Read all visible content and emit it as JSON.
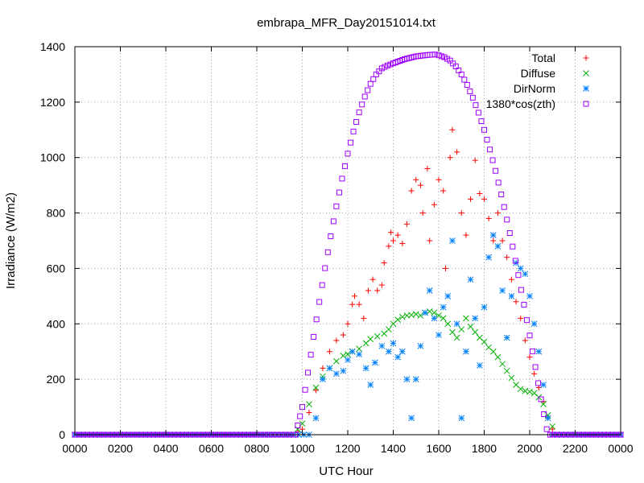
{
  "chart_data": {
    "type": "scatter",
    "title": "embrapa_MFR_Day20151014.txt",
    "xlabel": "UTC Hour",
    "ylabel": "Irradiance (W/m2)",
    "xlim": [
      0,
      24
    ],
    "ylim": [
      0,
      1400
    ],
    "x_ticks": [
      {
        "value": 0,
        "label": "0000"
      },
      {
        "value": 2,
        "label": "0200"
      },
      {
        "value": 4,
        "label": "0400"
      },
      {
        "value": 6,
        "label": "0600"
      },
      {
        "value": 8,
        "label": "0800"
      },
      {
        "value": 10,
        "label": "1000"
      },
      {
        "value": 12,
        "label": "1200"
      },
      {
        "value": 14,
        "label": "1400"
      },
      {
        "value": 16,
        "label": "1600"
      },
      {
        "value": 18,
        "label": "1800"
      },
      {
        "value": 20,
        "label": "2000"
      },
      {
        "value": 22,
        "label": "2200"
      },
      {
        "value": 24,
        "label": "0000"
      }
    ],
    "y_ticks": [
      0,
      200,
      400,
      600,
      800,
      1000,
      1200,
      1400
    ],
    "grid": true,
    "legend_position": "top-right",
    "series": [
      {
        "name": "Total",
        "color": "#ff0000",
        "marker": "plus",
        "points": [
          [
            0,
            0
          ],
          [
            2,
            0
          ],
          [
            4,
            0
          ],
          [
            6,
            0
          ],
          [
            8,
            0
          ],
          [
            9.6,
            0
          ],
          [
            10.0,
            20
          ],
          [
            10.3,
            80
          ],
          [
            10.6,
            160
          ],
          [
            10.9,
            240
          ],
          [
            11.2,
            300
          ],
          [
            11.5,
            340
          ],
          [
            11.8,
            360
          ],
          [
            12.0,
            400
          ],
          [
            12.2,
            470
          ],
          [
            12.3,
            500
          ],
          [
            12.5,
            470
          ],
          [
            12.7,
            420
          ],
          [
            12.9,
            520
          ],
          [
            13.1,
            560
          ],
          [
            13.3,
            520
          ],
          [
            13.5,
            540
          ],
          [
            13.6,
            620
          ],
          [
            13.8,
            680
          ],
          [
            13.9,
            730
          ],
          [
            14.0,
            700
          ],
          [
            14.2,
            720
          ],
          [
            14.4,
            690
          ],
          [
            14.6,
            760
          ],
          [
            14.8,
            880
          ],
          [
            15.0,
            920
          ],
          [
            15.2,
            900
          ],
          [
            15.3,
            800
          ],
          [
            15.5,
            960
          ],
          [
            15.6,
            700
          ],
          [
            15.8,
            830
          ],
          [
            16.0,
            920
          ],
          [
            16.2,
            880
          ],
          [
            16.3,
            600
          ],
          [
            16.5,
            1000
          ],
          [
            16.6,
            1100
          ],
          [
            16.8,
            1020
          ],
          [
            17.0,
            800
          ],
          [
            17.2,
            720
          ],
          [
            17.4,
            850
          ],
          [
            17.6,
            990
          ],
          [
            17.8,
            870
          ],
          [
            18.0,
            850
          ],
          [
            18.2,
            780
          ],
          [
            18.4,
            700
          ],
          [
            18.6,
            800
          ],
          [
            18.8,
            700
          ],
          [
            19.0,
            640
          ],
          [
            19.2,
            560
          ],
          [
            19.4,
            480
          ],
          [
            19.6,
            420
          ],
          [
            19.8,
            340
          ],
          [
            20.0,
            280
          ],
          [
            20.2,
            220
          ],
          [
            20.4,
            170
          ],
          [
            20.6,
            120
          ],
          [
            20.8,
            60
          ],
          [
            21.0,
            20
          ],
          [
            21.2,
            0
          ],
          [
            22,
            0
          ],
          [
            24,
            0
          ]
        ]
      },
      {
        "name": "Diffuse",
        "color": "#00b000",
        "marker": "x",
        "points": [
          [
            0,
            0
          ],
          [
            2,
            0
          ],
          [
            4,
            0
          ],
          [
            6,
            0
          ],
          [
            8,
            0
          ],
          [
            9.6,
            0
          ],
          [
            10.0,
            40
          ],
          [
            10.3,
            110
          ],
          [
            10.6,
            170
          ],
          [
            10.9,
            210
          ],
          [
            11.2,
            240
          ],
          [
            11.5,
            265
          ],
          [
            11.8,
            285
          ],
          [
            12.0,
            290
          ],
          [
            12.2,
            300
          ],
          [
            12.5,
            310
          ],
          [
            12.8,
            330
          ],
          [
            13.0,
            345
          ],
          [
            13.3,
            355
          ],
          [
            13.6,
            365
          ],
          [
            13.8,
            380
          ],
          [
            14.0,
            400
          ],
          [
            14.2,
            415
          ],
          [
            14.4,
            425
          ],
          [
            14.6,
            430
          ],
          [
            14.8,
            432
          ],
          [
            15.0,
            435
          ],
          [
            15.2,
            430
          ],
          [
            15.4,
            440
          ],
          [
            15.6,
            445
          ],
          [
            15.8,
            440
          ],
          [
            16.0,
            430
          ],
          [
            16.2,
            420
          ],
          [
            16.4,
            400
          ],
          [
            16.6,
            370
          ],
          [
            16.8,
            350
          ],
          [
            17.0,
            380
          ],
          [
            17.2,
            420
          ],
          [
            17.4,
            390
          ],
          [
            17.6,
            370
          ],
          [
            17.8,
            350
          ],
          [
            18.0,
            335
          ],
          [
            18.2,
            315
          ],
          [
            18.4,
            300
          ],
          [
            18.6,
            280
          ],
          [
            18.8,
            255
          ],
          [
            19.0,
            230
          ],
          [
            19.2,
            205
          ],
          [
            19.4,
            180
          ],
          [
            19.6,
            165
          ],
          [
            19.8,
            158
          ],
          [
            20.0,
            155
          ],
          [
            20.2,
            150
          ],
          [
            20.4,
            135
          ],
          [
            20.6,
            110
          ],
          [
            20.8,
            70
          ],
          [
            21.0,
            30
          ],
          [
            21.2,
            0
          ],
          [
            22,
            0
          ],
          [
            24,
            0
          ]
        ]
      },
      {
        "name": "DirNorm",
        "color": "#0080ff",
        "marker": "star",
        "points": [
          [
            0,
            0
          ],
          [
            2,
            0
          ],
          [
            4,
            0
          ],
          [
            6,
            0
          ],
          [
            8,
            0
          ],
          [
            9.6,
            0
          ],
          [
            10.3,
            0
          ],
          [
            10.6,
            60
          ],
          [
            10.9,
            200
          ],
          [
            11.2,
            240
          ],
          [
            11.5,
            220
          ],
          [
            11.8,
            230
          ],
          [
            12.0,
            270
          ],
          [
            12.2,
            300
          ],
          [
            12.5,
            290
          ],
          [
            12.8,
            240
          ],
          [
            13.0,
            180
          ],
          [
            13.2,
            260
          ],
          [
            13.5,
            320
          ],
          [
            13.8,
            300
          ],
          [
            14.0,
            330
          ],
          [
            14.2,
            280
          ],
          [
            14.4,
            300
          ],
          [
            14.6,
            200
          ],
          [
            14.8,
            60
          ],
          [
            15.0,
            200
          ],
          [
            15.2,
            320
          ],
          [
            15.4,
            440
          ],
          [
            15.6,
            520
          ],
          [
            15.8,
            420
          ],
          [
            16.0,
            360
          ],
          [
            16.2,
            460
          ],
          [
            16.4,
            500
          ],
          [
            16.6,
            700
          ],
          [
            16.8,
            400
          ],
          [
            17.0,
            60
          ],
          [
            17.2,
            300
          ],
          [
            17.4,
            560
          ],
          [
            17.6,
            420
          ],
          [
            17.8,
            250
          ],
          [
            18.0,
            460
          ],
          [
            18.2,
            640
          ],
          [
            18.4,
            720
          ],
          [
            18.6,
            680
          ],
          [
            18.8,
            520
          ],
          [
            19.0,
            350
          ],
          [
            19.2,
            500
          ],
          [
            19.4,
            620
          ],
          [
            19.6,
            600
          ],
          [
            19.8,
            580
          ],
          [
            20.0,
            500
          ],
          [
            20.2,
            400
          ],
          [
            20.4,
            300
          ],
          [
            20.6,
            180
          ],
          [
            20.8,
            60
          ],
          [
            21.0,
            0
          ],
          [
            22,
            0
          ],
          [
            24,
            0
          ]
        ]
      },
      {
        "name": "1380*cos(zth)",
        "color": "#a000ff",
        "marker": "square",
        "points": [
          [
            0,
            0
          ],
          [
            2,
            0
          ],
          [
            4,
            0
          ],
          [
            6,
            0
          ],
          [
            8,
            0
          ],
          [
            9.5,
            0
          ],
          [
            9.7,
            0
          ],
          [
            10.0,
            100
          ],
          [
            10.25,
            224
          ],
          [
            10.5,
            353
          ],
          [
            10.75,
            479
          ],
          [
            11.0,
            601
          ],
          [
            11.25,
            716
          ],
          [
            11.5,
            824
          ],
          [
            11.75,
            924
          ],
          [
            12.0,
            1014
          ],
          [
            12.25,
            1094
          ],
          [
            12.5,
            1163
          ],
          [
            12.75,
            1220
          ],
          [
            13.0,
            1266
          ],
          [
            13.25,
            1300
          ],
          [
            13.5,
            1322
          ],
          [
            13.75,
            1332
          ],
          [
            14.0,
            1340
          ],
          [
            14.5,
            1355
          ],
          [
            15.0,
            1365
          ],
          [
            15.5,
            1370
          ],
          [
            15.83,
            1372
          ],
          [
            16.0,
            1369
          ],
          [
            16.25,
            1362
          ],
          [
            16.5,
            1350
          ],
          [
            16.75,
            1329
          ],
          [
            17.0,
            1300
          ],
          [
            17.25,
            1262
          ],
          [
            17.5,
            1216
          ],
          [
            17.75,
            1162
          ],
          [
            18.0,
            1100
          ],
          [
            18.25,
            1029
          ],
          [
            18.5,
            952
          ],
          [
            18.75,
            867
          ],
          [
            19.0,
            776
          ],
          [
            19.25,
            679
          ],
          [
            19.5,
            576
          ],
          [
            19.75,
            469
          ],
          [
            20.0,
            358
          ],
          [
            20.25,
            244
          ],
          [
            20.5,
            128
          ],
          [
            20.75,
            20
          ],
          [
            20.9,
            0
          ],
          [
            22,
            0
          ],
          [
            24,
            0
          ]
        ]
      }
    ]
  }
}
